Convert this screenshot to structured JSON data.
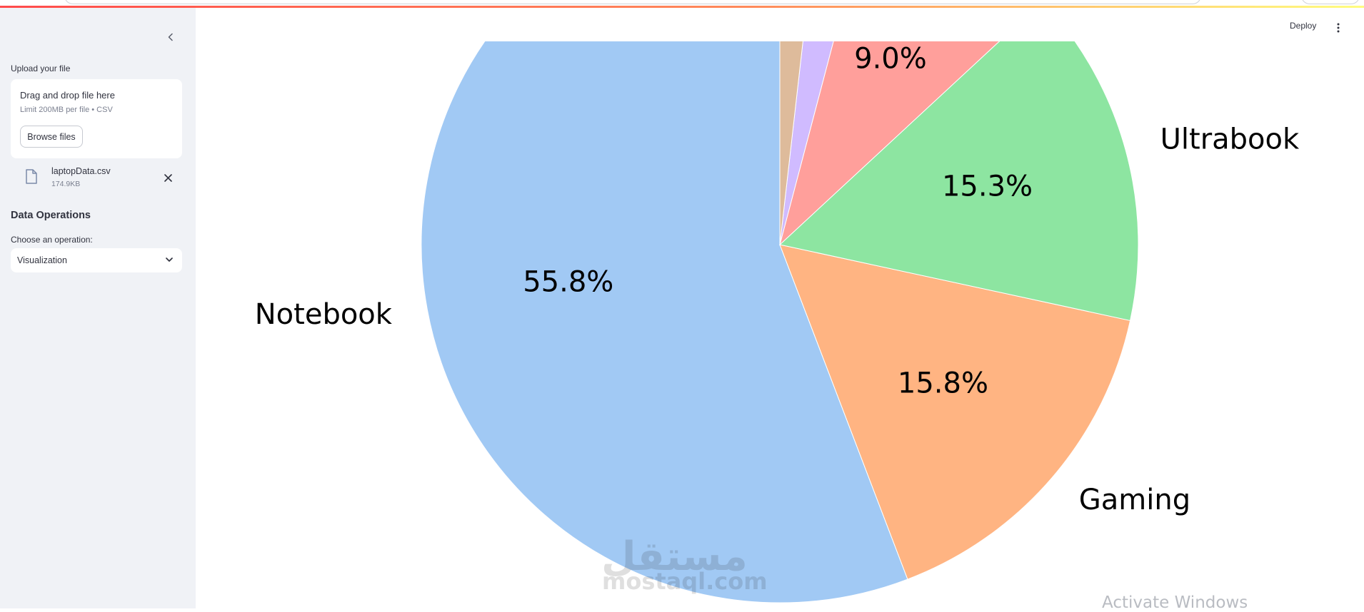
{
  "sidebar": {
    "collapse_icon": "chevron-left-icon",
    "upload_label": "Upload your file",
    "dropzone_title": "Drag and drop file here",
    "dropzone_limit": "Limit 200MB per file • CSV",
    "browse_button": "Browse files",
    "file": {
      "name": "laptopData.csv",
      "size": "174.9KB",
      "icon": "file-icon",
      "remove_icon": "close-icon"
    },
    "section_title": "Data Operations",
    "operation_label": "Choose an operation:",
    "operation_value": "Visualization"
  },
  "header": {
    "deploy_label": "Deploy",
    "menu_icon": "vertical-dots-icon"
  },
  "chart_data": {
    "type": "pie",
    "slices": [
      {
        "label": "Notebook",
        "pct": 55.8,
        "pct_label": "55.8%",
        "color": "#a1c9f4"
      },
      {
        "label": "Gaming",
        "pct": 15.8,
        "pct_label": "15.8%",
        "color": "#ffb482"
      },
      {
        "label": "Ultrabook",
        "pct": 15.3,
        "pct_label": "15.3%",
        "color": "#8de5a1"
      },
      {
        "label": "",
        "pct": 9.0,
        "pct_label": "9.0%",
        "color": "#ff9f9b"
      },
      {
        "label": "",
        "pct": 2.3,
        "pct_label": "",
        "color": "#d0bbff"
      },
      {
        "label": "",
        "pct": 1.8,
        "pct_label": "",
        "color": "#debb9b"
      }
    ]
  },
  "watermark": {
    "arabic": "مستقل",
    "latin": "mostaql.com"
  },
  "os_notice": "Activate Windows",
  "colors": {
    "sidebar_bg": "#f0f2f6",
    "accent": "#ff4b4b"
  }
}
